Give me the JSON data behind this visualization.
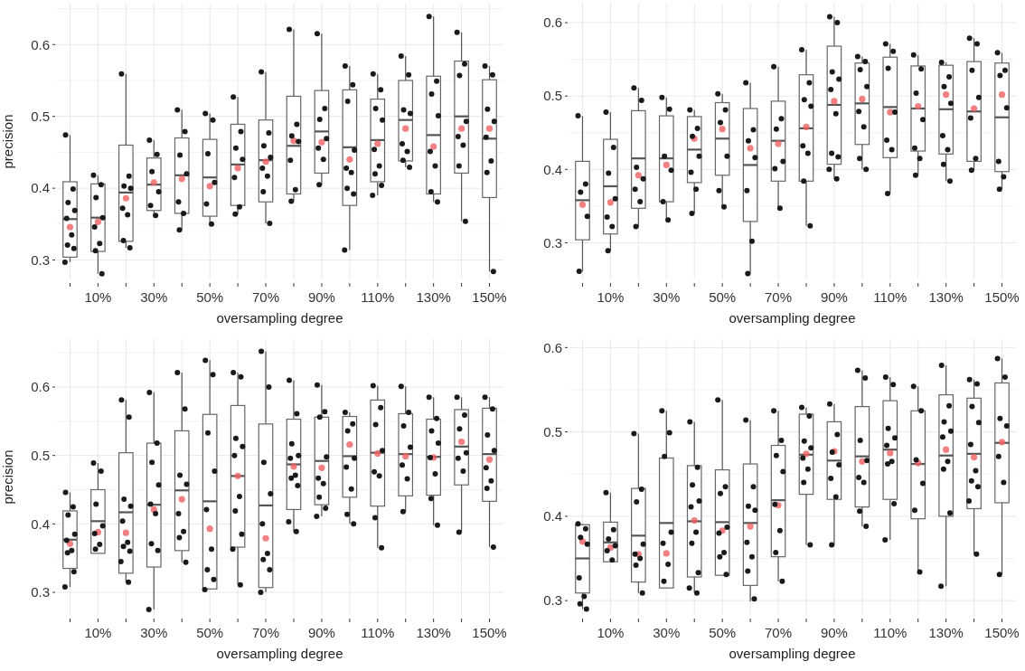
{
  "chart_data": [
    {
      "type": "box",
      "ylabel": "precision",
      "xlabel": "oversampling degree",
      "grid": true,
      "categories": [
        null,
        "10%",
        null,
        "30%",
        null,
        "50%",
        null,
        "70%",
        null,
        "90%",
        null,
        "110%",
        null,
        "130%",
        null,
        "150%"
      ],
      "ylim": [
        0.273,
        0.657
      ],
      "yticks": [
        0.3,
        0.4,
        0.5,
        0.6
      ],
      "boxes": [
        {
          "low": 0.297,
          "q1": 0.304,
          "median": 0.357,
          "q3": 0.409,
          "high": 0.474,
          "mean": 0.346,
          "outliers": [
            0.474,
            0.399,
            0.38,
            0.369,
            0.358,
            0.335,
            0.321,
            0.316,
            0.297
          ]
        },
        {
          "low": 0.281,
          "q1": 0.312,
          "median": 0.359,
          "q3": 0.406,
          "high": 0.418,
          "mean": 0.353,
          "outliers": [
            0.418,
            0.405,
            0.387,
            0.359,
            0.346,
            0.323,
            0.313,
            0.281
          ]
        },
        {
          "low": 0.317,
          "q1": 0.326,
          "median": 0.394,
          "q3": 0.46,
          "high": 0.559,
          "mean": 0.386,
          "outliers": [
            0.559,
            0.417,
            0.403,
            0.4,
            0.372,
            0.363,
            0.327,
            0.317
          ]
        },
        {
          "low": 0.362,
          "q1": 0.369,
          "median": 0.405,
          "q3": 0.442,
          "high": 0.467,
          "mean": 0.408,
          "outliers": [
            0.467,
            0.447,
            0.423,
            0.395,
            0.376,
            0.362
          ]
        },
        {
          "low": 0.342,
          "q1": 0.365,
          "median": 0.418,
          "q3": 0.47,
          "high": 0.509,
          "mean": 0.413,
          "outliers": [
            0.509,
            0.479,
            0.446,
            0.42,
            0.381,
            0.365,
            0.342
          ]
        },
        {
          "low": 0.348,
          "q1": 0.361,
          "median": 0.415,
          "q3": 0.468,
          "high": 0.504,
          "mean": 0.403,
          "outliers": [
            0.504,
            0.495,
            0.448,
            0.408,
            0.378,
            0.35
          ]
        },
        {
          "low": 0.364,
          "q1": 0.376,
          "median": 0.433,
          "q3": 0.489,
          "high": 0.527,
          "mean": 0.428,
          "outliers": [
            0.527,
            0.479,
            0.456,
            0.44,
            0.415,
            0.374,
            0.364
          ]
        },
        {
          "low": 0.351,
          "q1": 0.381,
          "median": 0.439,
          "q3": 0.495,
          "high": 0.562,
          "mean": 0.437,
          "outliers": [
            0.562,
            0.477,
            0.459,
            0.443,
            0.428,
            0.417,
            0.395,
            0.351
          ]
        },
        {
          "low": 0.382,
          "q1": 0.392,
          "median": 0.459,
          "q3": 0.528,
          "high": 0.621,
          "mean": 0.466,
          "outliers": [
            0.621,
            0.489,
            0.473,
            0.465,
            0.439,
            0.398,
            0.382
          ]
        },
        {
          "low": 0.405,
          "q1": 0.421,
          "median": 0.479,
          "q3": 0.536,
          "high": 0.615,
          "mean": 0.464,
          "outliers": [
            0.615,
            0.511,
            0.496,
            0.469,
            0.456,
            0.44,
            0.405
          ]
        },
        {
          "low": 0.314,
          "q1": 0.376,
          "median": 0.457,
          "q3": 0.537,
          "high": 0.57,
          "mean": 0.44,
          "outliers": [
            0.57,
            0.544,
            0.521,
            0.453,
            0.428,
            0.422,
            0.4,
            0.392,
            0.314
          ]
        },
        {
          "low": 0.39,
          "q1": 0.409,
          "median": 0.467,
          "q3": 0.524,
          "high": 0.559,
          "mean": 0.462,
          "outliers": [
            0.559,
            0.537,
            0.511,
            0.495,
            0.454,
            0.431,
            0.42,
            0.404,
            0.39
          ]
        },
        {
          "low": 0.429,
          "q1": 0.438,
          "median": 0.495,
          "q3": 0.55,
          "high": 0.584,
          "mean": 0.483,
          "outliers": [
            0.584,
            0.558,
            0.509,
            0.504,
            0.462,
            0.451,
            0.439,
            0.429
          ]
        },
        {
          "low": 0.381,
          "q1": 0.392,
          "median": 0.474,
          "q3": 0.556,
          "high": 0.639,
          "mean": 0.458,
          "outliers": [
            0.639,
            0.549,
            0.531,
            0.501,
            0.451,
            0.431,
            0.395,
            0.381
          ]
        },
        {
          "low": 0.354,
          "q1": 0.421,
          "median": 0.5,
          "q3": 0.577,
          "high": 0.617,
          "mean": 0.483,
          "outliers": [
            0.617,
            0.573,
            0.557,
            0.493,
            0.472,
            0.46,
            0.431,
            0.354
          ]
        },
        {
          "low": 0.284,
          "q1": 0.387,
          "median": 0.469,
          "q3": 0.551,
          "high": 0.57,
          "mean": 0.483,
          "outliers": [
            0.57,
            0.558,
            0.51,
            0.493,
            0.471,
            0.438,
            0.422,
            0.284
          ]
        }
      ]
    },
    {
      "type": "box",
      "xlabel": "oversampling degree",
      "grid": true,
      "categories": [
        null,
        "10%",
        null,
        "30%",
        null,
        "50%",
        null,
        "70%",
        null,
        "90%",
        null,
        "110%",
        null,
        "130%",
        null,
        "150%"
      ],
      "ylim": [
        0.25,
        0.626
      ],
      "yticks": [
        0.3,
        0.4,
        0.5,
        0.6
      ],
      "boxes": [
        {
          "low": 0.261,
          "q1": 0.304,
          "median": 0.358,
          "q3": 0.411,
          "high": 0.473,
          "mean": 0.352,
          "outliers": [
            0.473,
            0.38,
            0.369,
            0.336,
            0.261
          ]
        },
        {
          "low": 0.289,
          "q1": 0.312,
          "median": 0.377,
          "q3": 0.441,
          "high": 0.478,
          "mean": 0.355,
          "outliers": [
            0.478,
            0.43,
            0.395,
            0.36,
            0.335,
            0.322,
            0.289
          ]
        },
        {
          "low": 0.322,
          "q1": 0.347,
          "median": 0.415,
          "q3": 0.48,
          "high": 0.511,
          "mean": 0.392,
          "outliers": [
            0.511,
            0.494,
            0.403,
            0.387,
            0.373,
            0.356,
            0.322
          ]
        },
        {
          "low": 0.331,
          "q1": 0.356,
          "median": 0.415,
          "q3": 0.473,
          "high": 0.498,
          "mean": 0.406,
          "outliers": [
            0.498,
            0.482,
            0.418,
            0.399,
            0.356,
            0.331
          ]
        },
        {
          "low": 0.34,
          "q1": 0.382,
          "median": 0.427,
          "q3": 0.472,
          "high": 0.481,
          "mean": 0.442,
          "outliers": [
            0.481,
            0.456,
            0.445,
            0.418,
            0.396,
            0.373,
            0.34
          ]
        },
        {
          "low": 0.349,
          "q1": 0.392,
          "median": 0.442,
          "q3": 0.491,
          "high": 0.503,
          "mean": 0.455,
          "outliers": [
            0.503,
            0.481,
            0.464,
            0.418,
            0.371,
            0.349
          ]
        },
        {
          "low": 0.258,
          "q1": 0.329,
          "median": 0.406,
          "q3": 0.483,
          "high": 0.518,
          "mean": 0.429,
          "outliers": [
            0.518,
            0.454,
            0.439,
            0.416,
            0.371,
            0.302,
            0.258
          ]
        },
        {
          "low": 0.347,
          "q1": 0.384,
          "median": 0.439,
          "q3": 0.493,
          "high": 0.54,
          "mean": 0.435,
          "outliers": [
            0.54,
            0.469,
            0.455,
            0.411,
            0.401,
            0.347
          ]
        },
        {
          "low": 0.323,
          "q1": 0.384,
          "median": 0.456,
          "q3": 0.529,
          "high": 0.563,
          "mean": 0.458,
          "outliers": [
            0.563,
            0.518,
            0.495,
            0.486,
            0.432,
            0.422,
            0.384,
            0.323
          ]
        },
        {
          "low": 0.387,
          "q1": 0.407,
          "median": 0.488,
          "q3": 0.568,
          "high": 0.608,
          "mean": 0.493,
          "outliers": [
            0.608,
            0.6,
            0.533,
            0.523,
            0.509,
            0.476,
            0.422,
            0.417,
            0.4,
            0.387
          ]
        },
        {
          "low": 0.4,
          "q1": 0.434,
          "median": 0.49,
          "q3": 0.545,
          "high": 0.554,
          "mean": 0.496,
          "outliers": [
            0.554,
            0.547,
            0.536,
            0.513,
            0.479,
            0.458,
            0.415,
            0.4
          ]
        },
        {
          "low": 0.367,
          "q1": 0.416,
          "median": 0.485,
          "q3": 0.553,
          "high": 0.571,
          "mean": 0.478,
          "outliers": [
            0.571,
            0.561,
            0.538,
            0.478,
            0.44,
            0.427,
            0.367
          ]
        },
        {
          "low": 0.392,
          "q1": 0.425,
          "median": 0.483,
          "q3": 0.541,
          "high": 0.556,
          "mean": 0.486,
          "outliers": [
            0.556,
            0.537,
            0.504,
            0.468,
            0.429,
            0.415,
            0.392
          ]
        },
        {
          "low": 0.384,
          "q1": 0.421,
          "median": 0.482,
          "q3": 0.542,
          "high": 0.546,
          "mean": 0.502,
          "outliers": [
            0.546,
            0.526,
            0.513,
            0.49,
            0.446,
            0.427,
            0.407,
            0.384
          ]
        },
        {
          "low": 0.399,
          "q1": 0.411,
          "median": 0.479,
          "q3": 0.547,
          "high": 0.579,
          "mean": 0.483,
          "outliers": [
            0.579,
            0.571,
            0.535,
            0.498,
            0.47,
            0.415,
            0.399
          ]
        },
        {
          "low": 0.373,
          "q1": 0.397,
          "median": 0.471,
          "q3": 0.545,
          "high": 0.559,
          "mean": 0.502,
          "outliers": [
            0.559,
            0.535,
            0.528,
            0.484,
            0.411,
            0.39,
            0.373
          ]
        }
      ]
    },
    {
      "type": "box",
      "ylabel": "precision",
      "xlabel": "oversampling degree",
      "grid": true,
      "categories": [
        null,
        "10%",
        null,
        "30%",
        null,
        "50%",
        null,
        "70%",
        null,
        "90%",
        null,
        "110%",
        null,
        "130%",
        null,
        "150%"
      ],
      "ylim": [
        0.267,
        0.67
      ],
      "yticks": [
        0.3,
        0.4,
        0.5,
        0.6
      ],
      "boxes": [
        {
          "low": 0.308,
          "q1": 0.335,
          "median": 0.377,
          "q3": 0.419,
          "high": 0.446,
          "mean": 0.371,
          "outliers": [
            0.446,
            0.425,
            0.413,
            0.385,
            0.376,
            0.361,
            0.358,
            0.33,
            0.308
          ]
        },
        {
          "low": 0.357,
          "q1": 0.357,
          "median": 0.404,
          "q3": 0.45,
          "high": 0.489,
          "mean": 0.388,
          "outliers": [
            0.489,
            0.477,
            0.429,
            0.397,
            0.386,
            0.37,
            0.363
          ]
        },
        {
          "low": 0.315,
          "q1": 0.328,
          "median": 0.417,
          "q3": 0.504,
          "high": 0.581,
          "mean": 0.387,
          "outliers": [
            0.581,
            0.556,
            0.436,
            0.426,
            0.404,
            0.373,
            0.367,
            0.36,
            0.345,
            0.315
          ]
        },
        {
          "low": 0.275,
          "q1": 0.337,
          "median": 0.428,
          "q3": 0.518,
          "high": 0.592,
          "mean": 0.421,
          "outliers": [
            0.592,
            0.518,
            0.49,
            0.457,
            0.429,
            0.415,
            0.371,
            0.361,
            0.275
          ]
        },
        {
          "low": 0.344,
          "q1": 0.361,
          "median": 0.449,
          "q3": 0.536,
          "high": 0.621,
          "mean": 0.436,
          "outliers": [
            0.621,
            0.568,
            0.471,
            0.458,
            0.415,
            0.389,
            0.38,
            0.344
          ]
        },
        {
          "low": 0.304,
          "q1": 0.305,
          "median": 0.433,
          "q3": 0.56,
          "high": 0.639,
          "mean": 0.393,
          "outliers": [
            0.639,
            0.618,
            0.533,
            0.477,
            0.421,
            0.363,
            0.333,
            0.319,
            0.304
          ]
        },
        {
          "low": 0.311,
          "q1": 0.366,
          "median": 0.47,
          "q3": 0.573,
          "high": 0.621,
          "mean": 0.47,
          "outliers": [
            0.621,
            0.615,
            0.525,
            0.513,
            0.5,
            0.44,
            0.419,
            0.385,
            0.363,
            0.311
          ]
        },
        {
          "low": 0.3,
          "q1": 0.307,
          "median": 0.427,
          "q3": 0.546,
          "high": 0.652,
          "mean": 0.379,
          "outliers": [
            0.652,
            0.6,
            0.49,
            0.444,
            0.4,
            0.357,
            0.348,
            0.333,
            0.3
          ]
        },
        {
          "low": 0.389,
          "q1": 0.421,
          "median": 0.487,
          "q3": 0.553,
          "high": 0.61,
          "mean": 0.484,
          "outliers": [
            0.61,
            0.561,
            0.517,
            0.5,
            0.496,
            0.471,
            0.467,
            0.456,
            0.403,
            0.389
          ]
        },
        {
          "low": 0.411,
          "q1": 0.428,
          "median": 0.492,
          "q3": 0.556,
          "high": 0.603,
          "mean": 0.482,
          "outliers": [
            0.603,
            0.564,
            0.556,
            0.498,
            0.467,
            0.459,
            0.439,
            0.423,
            0.411
          ]
        },
        {
          "low": 0.4,
          "q1": 0.439,
          "median": 0.499,
          "q3": 0.557,
          "high": 0.563,
          "mean": 0.516,
          "outliers": [
            0.563,
            0.546,
            0.536,
            0.496,
            0.483,
            0.451,
            0.414,
            0.4
          ]
        },
        {
          "low": 0.365,
          "q1": 0.426,
          "median": 0.504,
          "q3": 0.581,
          "high": 0.602,
          "mean": 0.503,
          "outliers": [
            0.602,
            0.57,
            0.545,
            0.507,
            0.476,
            0.47,
            0.409,
            0.365
          ]
        },
        {
          "low": 0.418,
          "q1": 0.441,
          "median": 0.502,
          "q3": 0.561,
          "high": 0.601,
          "mean": 0.499,
          "outliers": [
            0.601,
            0.563,
            0.543,
            0.512,
            0.486,
            0.466,
            0.418
          ]
        },
        {
          "low": 0.398,
          "q1": 0.442,
          "median": 0.498,
          "q3": 0.553,
          "high": 0.585,
          "mean": 0.497,
          "outliers": [
            0.585,
            0.554,
            0.536,
            0.518,
            0.497,
            0.473,
            0.437,
            0.398
          ]
        },
        {
          "low": 0.388,
          "q1": 0.457,
          "median": 0.513,
          "q3": 0.567,
          "high": 0.585,
          "mean": 0.52,
          "outliers": [
            0.585,
            0.559,
            0.539,
            0.504,
            0.496,
            0.477,
            0.388
          ]
        },
        {
          "low": 0.366,
          "q1": 0.433,
          "median": 0.502,
          "q3": 0.569,
          "high": 0.585,
          "mean": 0.494,
          "outliers": [
            0.585,
            0.568,
            0.53,
            0.507,
            0.482,
            0.463,
            0.452,
            0.366
          ]
        }
      ]
    },
    {
      "type": "box",
      "xlabel": "oversampling degree",
      "grid": true,
      "categories": [
        null,
        "10%",
        null,
        "30%",
        null,
        "50%",
        null,
        "70%",
        null,
        "90%",
        null,
        "110%",
        null,
        "130%",
        null,
        "150%"
      ],
      "ylim": [
        0.283,
        0.61
      ],
      "yticks": [
        0.3,
        0.4,
        0.5,
        0.6
      ],
      "boxes": [
        {
          "low": 0.29,
          "q1": 0.309,
          "median": 0.35,
          "q3": 0.39,
          "high": 0.391,
          "mean": 0.37,
          "outliers": [
            0.391,
            0.385,
            0.375,
            0.367,
            0.327,
            0.305,
            0.296,
            0.29
          ]
        },
        {
          "low": 0.346,
          "q1": 0.346,
          "median": 0.369,
          "q3": 0.393,
          "high": 0.428,
          "mean": 0.363,
          "outliers": [
            0.428,
            0.384,
            0.373,
            0.365,
            0.359,
            0.348
          ]
        },
        {
          "low": 0.309,
          "q1": 0.322,
          "median": 0.377,
          "q3": 0.433,
          "high": 0.498,
          "mean": 0.355,
          "outliers": [
            0.498,
            0.432,
            0.417,
            0.367,
            0.355,
            0.35,
            0.342,
            0.309
          ]
        },
        {
          "low": 0.315,
          "q1": 0.315,
          "median": 0.392,
          "q3": 0.469,
          "high": 0.525,
          "mean": 0.356,
          "outliers": [
            0.525,
            0.499,
            0.471,
            0.381,
            0.368,
            0.343,
            0.323
          ]
        },
        {
          "low": 0.309,
          "q1": 0.328,
          "median": 0.394,
          "q3": 0.46,
          "high": 0.512,
          "mean": 0.395,
          "outliers": [
            0.512,
            0.458,
            0.437,
            0.418,
            0.411,
            0.381,
            0.368,
            0.333,
            0.315,
            0.309
          ]
        },
        {
          "low": 0.33,
          "q1": 0.33,
          "median": 0.393,
          "q3": 0.455,
          "high": 0.538,
          "mean": 0.383,
          "outliers": [
            0.538,
            0.435,
            0.427,
            0.387,
            0.38,
            0.357,
            0.352,
            0.331
          ]
        },
        {
          "low": 0.299,
          "q1": 0.318,
          "median": 0.392,
          "q3": 0.462,
          "high": 0.514,
          "mean": 0.388,
          "outliers": [
            0.514,
            0.435,
            0.412,
            0.407,
            0.369,
            0.352,
            0.335,
            0.302
          ]
        },
        {
          "low": 0.323,
          "q1": 0.352,
          "median": 0.419,
          "q3": 0.484,
          "high": 0.525,
          "mean": 0.413,
          "outliers": [
            0.525,
            0.49,
            0.472,
            0.453,
            0.414,
            0.383,
            0.357,
            0.323
          ]
        },
        {
          "low": 0.366,
          "q1": 0.426,
          "median": 0.473,
          "q3": 0.521,
          "high": 0.529,
          "mean": 0.474,
          "outliers": [
            0.529,
            0.519,
            0.489,
            0.481,
            0.469,
            0.456,
            0.44,
            0.366
          ]
        },
        {
          "low": 0.366,
          "q1": 0.42,
          "median": 0.466,
          "q3": 0.512,
          "high": 0.533,
          "mean": 0.477,
          "outliers": [
            0.533,
            0.497,
            0.476,
            0.461,
            0.445,
            0.423,
            0.366
          ]
        },
        {
          "low": 0.388,
          "q1": 0.411,
          "median": 0.471,
          "q3": 0.53,
          "high": 0.573,
          "mean": 0.465,
          "outliers": [
            0.573,
            0.564,
            0.49,
            0.466,
            0.446,
            0.44,
            0.406,
            0.388
          ]
        },
        {
          "low": 0.372,
          "q1": 0.42,
          "median": 0.479,
          "q3": 0.537,
          "high": 0.565,
          "mean": 0.475,
          "outliers": [
            0.565,
            0.556,
            0.504,
            0.493,
            0.484,
            0.465,
            0.462,
            0.415,
            0.372
          ]
        },
        {
          "low": 0.334,
          "q1": 0.397,
          "median": 0.462,
          "q3": 0.525,
          "high": 0.554,
          "mean": 0.463,
          "outliers": [
            0.554,
            0.525,
            0.467,
            0.439,
            0.407,
            0.334
          ]
        },
        {
          "low": 0.317,
          "q1": 0.4,
          "median": 0.472,
          "q3": 0.544,
          "high": 0.579,
          "mean": 0.479,
          "outliers": [
            0.579,
            0.531,
            0.512,
            0.501,
            0.494,
            0.465,
            0.456,
            0.404,
            0.317
          ]
        },
        {
          "low": 0.355,
          "q1": 0.409,
          "median": 0.474,
          "q3": 0.54,
          "high": 0.562,
          "mean": 0.47,
          "outliers": [
            0.562,
            0.557,
            0.53,
            0.511,
            0.485,
            0.454,
            0.442,
            0.435,
            0.418,
            0.355
          ]
        },
        {
          "low": 0.331,
          "q1": 0.416,
          "median": 0.487,
          "q3": 0.558,
          "high": 0.587,
          "mean": 0.488,
          "outliers": [
            0.587,
            0.565,
            0.516,
            0.507,
            0.471,
            0.44,
            0.331
          ]
        }
      ]
    }
  ]
}
